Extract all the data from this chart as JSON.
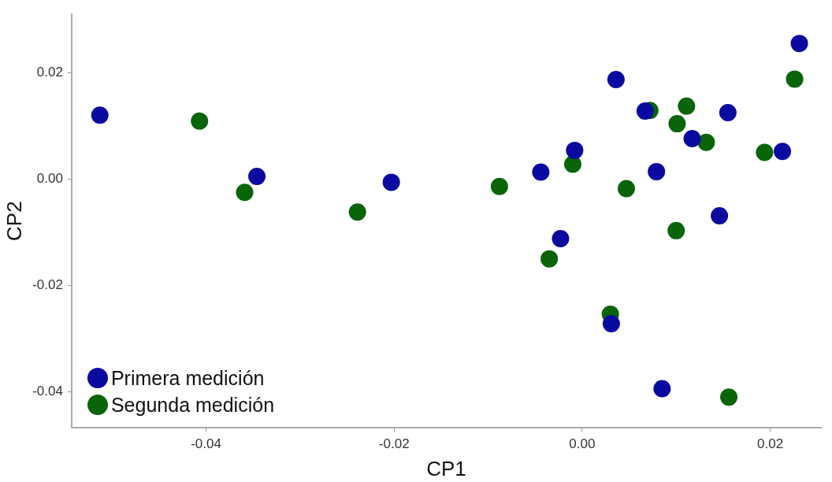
{
  "chart_data": {
    "type": "scatter",
    "xlabel": "CP1",
    "ylabel": "CP2",
    "xlim": [
      -0.0543,
      0.0254
    ],
    "ylim": [
      -0.0468,
      0.031
    ],
    "xticks": [
      {
        "value": -0.04,
        "label": "-0.04"
      },
      {
        "value": -0.02,
        "label": "-0.02"
      },
      {
        "value": 0,
        "label": "0.00"
      },
      {
        "value": 0.02,
        "label": "0.02"
      }
    ],
    "yticks": [
      {
        "value": -0.04,
        "label": "-0.04"
      },
      {
        "value": -0.02,
        "label": "-0.02"
      },
      {
        "value": 0,
        "label": "0.00"
      },
      {
        "value": 0.02,
        "label": "0.02"
      }
    ],
    "grid": false,
    "legend": "bottom left",
    "marker": "circle",
    "series": [
      {
        "name": "Primera medición",
        "color": "#0a0aa0",
        "x": [
          -0.0513,
          -0.0346,
          -0.0203,
          -0.0044,
          -0.0008,
          -0.0023,
          0.0036,
          0.0067,
          0.0079,
          0.0117,
          0.0155,
          0.0146,
          0.0213,
          0.0231,
          0.0031,
          0.0085
        ],
        "values": [
          0.012,
          0.0005,
          -0.0006,
          0.0013,
          0.0054,
          -0.0112,
          0.0187,
          0.0128,
          0.0014,
          0.0076,
          0.0125,
          -0.0069,
          0.0052,
          0.0255,
          -0.0272,
          -0.0394
        ]
      },
      {
        "name": "Segunda medición",
        "color": "#0a640a",
        "x": [
          -0.0407,
          -0.0359,
          -0.0239,
          -0.0088,
          -0.001,
          -0.0035,
          0.0047,
          0.0072,
          0.0101,
          0.0111,
          0.0132,
          0.01,
          0.0194,
          0.0226,
          0.003,
          0.0156
        ],
        "values": [
          0.0109,
          -0.0025,
          -0.0062,
          -0.0014,
          0.0028,
          -0.015,
          -0.0018,
          0.0129,
          0.0104,
          0.0137,
          0.0069,
          -0.0097,
          0.005,
          0.0188,
          -0.0254,
          -0.041
        ]
      }
    ]
  }
}
